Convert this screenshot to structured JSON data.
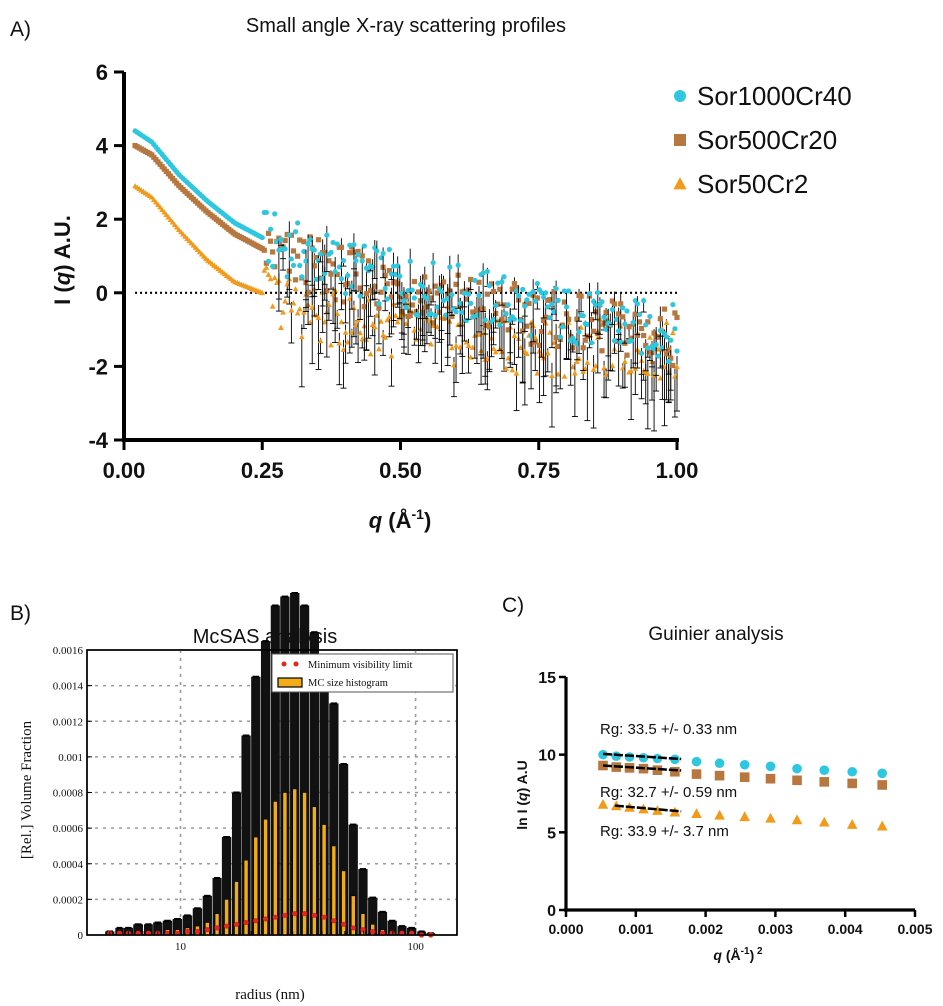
{
  "panels": {
    "a": {
      "letter": "A)",
      "title": "Small angle X-ray scattering profiles"
    },
    "b": {
      "letter": "B)",
      "title": "McSAS analysis"
    },
    "c": {
      "letter": "C)",
      "title": "Guinier analysis"
    }
  },
  "colors": {
    "cyan": "#2ec7e0",
    "brown": "#b7773e",
    "orange": "#f39a1a",
    "hist": "#f2ac18",
    "red": "#e8231e"
  },
  "chart_data": [
    {
      "id": "a",
      "type": "scatter",
      "title": "Small angle X-ray scattering profiles",
      "xlabel": "q (Å-1)",
      "ylabel": "I (q) A.U.",
      "xlim": [
        0,
        1.0
      ],
      "ylim": [
        -4,
        6
      ],
      "xticks": [
        "0.00",
        "0.25",
        "0.50",
        "0.75",
        "1.00"
      ],
      "yticks": [
        "-4",
        "-2",
        "0",
        "2",
        "4",
        "6"
      ],
      "legend_position": "top-right",
      "reference_line_y": 0,
      "series": [
        {
          "name": "Sor1000Cr40",
          "marker": "circle",
          "color": "#2ec7e0",
          "x": [
            0.02,
            0.05,
            0.1,
            0.15,
            0.2,
            0.25,
            0.3,
            0.35,
            0.4,
            0.45,
            0.5,
            0.55,
            0.6,
            0.7,
            0.8,
            0.9,
            1.0
          ],
          "y": [
            4.4,
            4.1,
            3.2,
            2.5,
            1.9,
            1.5,
            1.2,
            0.95,
            0.72,
            0.5,
            0.3,
            0.1,
            0.0,
            -0.3,
            -0.6,
            -0.9,
            -1.1
          ]
        },
        {
          "name": "Sor500Cr20",
          "marker": "square",
          "color": "#b7773e",
          "x": [
            0.02,
            0.05,
            0.1,
            0.15,
            0.2,
            0.25,
            0.3,
            0.35,
            0.4,
            0.45,
            0.5,
            0.55,
            0.6,
            0.7,
            0.8,
            0.9,
            1.0
          ],
          "y": [
            4.0,
            3.75,
            2.9,
            2.2,
            1.6,
            1.2,
            0.9,
            0.7,
            0.5,
            0.3,
            0.1,
            -0.05,
            -0.2,
            -0.5,
            -0.8,
            -1.0,
            -1.2
          ]
        },
        {
          "name": "Sor50Cr2",
          "marker": "triangle",
          "color": "#f39a1a",
          "x": [
            0.02,
            0.05,
            0.1,
            0.15,
            0.2,
            0.25,
            0.3,
            0.35,
            0.4,
            0.45,
            0.5,
            0.55,
            0.6,
            0.7,
            0.8,
            0.9,
            1.0
          ],
          "y": [
            2.9,
            2.6,
            1.7,
            0.9,
            0.3,
            0.0,
            -0.3,
            -0.6,
            -0.8,
            -0.9,
            -1.0,
            -1.1,
            -1.2,
            -1.4,
            -1.5,
            -1.5,
            -1.6
          ]
        }
      ]
    },
    {
      "id": "b",
      "type": "bar",
      "title": "McSAS analysis",
      "xlabel": "radius (nm)",
      "ylabel": "[Rel.] Volume Fraction",
      "xscale": "log",
      "xlim": [
        4,
        150
      ],
      "ylim": [
        0,
        0.0016
      ],
      "xticks": [
        "10",
        "100"
      ],
      "yticks": [
        "0",
        "0.0002",
        "0.0004",
        "0.0006",
        "0.0008",
        "0.001",
        "0.0012",
        "0.0014",
        "0.0016"
      ],
      "grid": true,
      "legend_position": "top-right",
      "legend": [
        "Minimum visibility limit",
        "MC size histogram"
      ],
      "x": [
        5.0,
        5.5,
        6.0,
        6.6,
        7.3,
        8.0,
        8.8,
        9.7,
        10.7,
        11.8,
        13.0,
        14.3,
        15.7,
        17.3,
        19.0,
        20.9,
        23.0,
        25.3,
        27.8,
        30.6,
        33.7,
        37.1,
        40.8,
        44.9,
        49.4,
        54.3,
        59.7,
        65.7,
        72.3,
        79.5,
        87.5,
        96.2,
        106,
        116
      ],
      "series": [
        {
          "name": "MC size histogram",
          "values": [
            0.0,
            1e-05,
            1e-05,
            2e-05,
            2e-05,
            2e-05,
            3e-05,
            3e-05,
            4e-05,
            5e-05,
            7e-05,
            0.00012,
            0.0002,
            0.0003,
            0.00042,
            0.00055,
            0.00065,
            0.00075,
            0.0008,
            0.00082,
            0.0008,
            0.00072,
            0.00062,
            0.0005,
            0.00036,
            0.00022,
            0.00012,
            6e-05,
            3e-05,
            2e-05,
            1e-05,
            1e-05,
            0.0,
            0.0
          ],
          "errors": [
            2e-05,
            3e-05,
            3e-05,
            4e-05,
            4e-05,
            5e-05,
            5e-05,
            6e-05,
            7e-05,
            0.0001,
            0.00015,
            0.0002,
            0.00035,
            0.0005,
            0.0007,
            0.0009,
            0.001,
            0.0011,
            0.0011,
            0.0011,
            0.00105,
            0.00098,
            0.0009,
            0.0008,
            0.0006,
            0.0004,
            0.00025,
            0.00015,
            0.0001,
            6e-05,
            4e-05,
            3e-05,
            2e-05,
            1e-05
          ]
        },
        {
          "name": "Minimum visibility limit",
          "values": [
            1e-05,
            1e-05,
            1e-05,
            1e-05,
            1e-05,
            1e-05,
            1e-05,
            1e-05,
            2e-05,
            2e-05,
            3e-05,
            4e-05,
            5e-05,
            6e-05,
            7e-05,
            8e-05,
            9e-05,
            0.0001,
            0.00011,
            0.00012,
            0.00012,
            0.00011,
            0.0001,
            8e-05,
            6e-05,
            4e-05,
            3e-05,
            2e-05,
            1e-05,
            1e-05,
            1e-05,
            1e-05,
            0.0,
            0.0
          ]
        }
      ]
    },
    {
      "id": "c",
      "type": "scatter",
      "title": "Guinier analysis",
      "xlabel": "q (Å-1) 2",
      "ylabel": "ln I (q) A.U",
      "xlim": [
        0,
        0.005
      ],
      "ylim": [
        0,
        15
      ],
      "xticks": [
        "0.000",
        "0.001",
        "0.002",
        "0.003",
        "0.004",
        "0.005"
      ],
      "yticks": [
        "0",
        "5",
        "10",
        "15"
      ],
      "annotations": [
        "Rg: 33.5 +/- 0.33 nm",
        "Rg: 32.7 +/- 0.59 nm",
        "Rg: 33.9 +/- 3.7 nm"
      ],
      "x": [
        0.00053,
        0.00072,
        0.00091,
        0.00111,
        0.00131,
        0.00156,
        0.00187,
        0.0022,
        0.00256,
        0.00293,
        0.00331,
        0.0037,
        0.0041,
        0.00453
      ],
      "series": [
        {
          "marker": "circle",
          "color": "#2ec7e0",
          "values": [
            10.0,
            9.9,
            9.85,
            9.8,
            9.75,
            9.7,
            9.55,
            9.45,
            9.35,
            9.25,
            9.1,
            9.0,
            8.9,
            8.8
          ]
        },
        {
          "marker": "square",
          "color": "#b7773e",
          "values": [
            9.3,
            9.2,
            9.15,
            9.1,
            9.0,
            8.9,
            8.75,
            8.65,
            8.55,
            8.45,
            8.35,
            8.25,
            8.15,
            8.05
          ]
        },
        {
          "marker": "triangle",
          "color": "#f39a1a",
          "values": [
            6.8,
            6.7,
            6.6,
            6.5,
            6.4,
            6.3,
            6.2,
            6.1,
            6.0,
            5.9,
            5.8,
            5.65,
            5.5,
            5.4
          ]
        }
      ],
      "fits": [
        {
          "x": [
            0.00053,
            0.00165
          ],
          "y": [
            10.05,
            9.72
          ]
        },
        {
          "x": [
            0.00053,
            0.00165
          ],
          "y": [
            9.3,
            8.98
          ]
        },
        {
          "x": [
            0.0007,
            0.00165
          ],
          "y": [
            6.72,
            6.35
          ]
        }
      ]
    }
  ]
}
